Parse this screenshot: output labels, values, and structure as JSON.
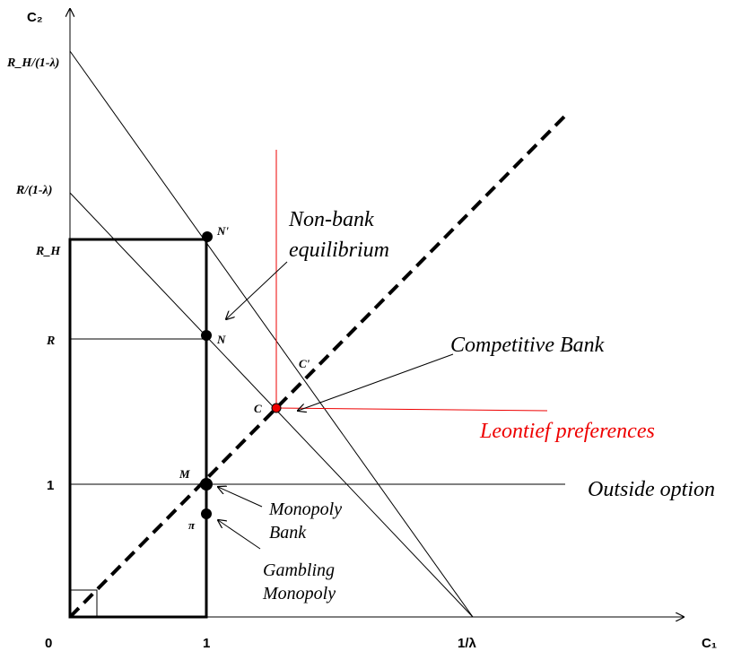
{
  "axes": {
    "y_label": "C₂",
    "x_label": "C₁",
    "origin": "0",
    "x_ticks": [
      "1",
      "1/λ"
    ],
    "y_ticks": [
      "R_H/(1-λ)",
      "R/(1-λ)",
      "R_H",
      "R",
      "1"
    ]
  },
  "points": {
    "n_prime": "N'",
    "n": "N",
    "c_prime": "C'",
    "c": "C",
    "m": "M",
    "pi": "π"
  },
  "annotations": {
    "non_bank": [
      "Non-bank",
      "equilibrium"
    ],
    "competitive": "Competitive Bank",
    "leontief": "Leontief preferences",
    "outside": "Outside option",
    "monopoly": [
      "Monopoly",
      "Bank"
    ],
    "gambling": [
      "Gambling",
      "Monopoly"
    ]
  }
}
